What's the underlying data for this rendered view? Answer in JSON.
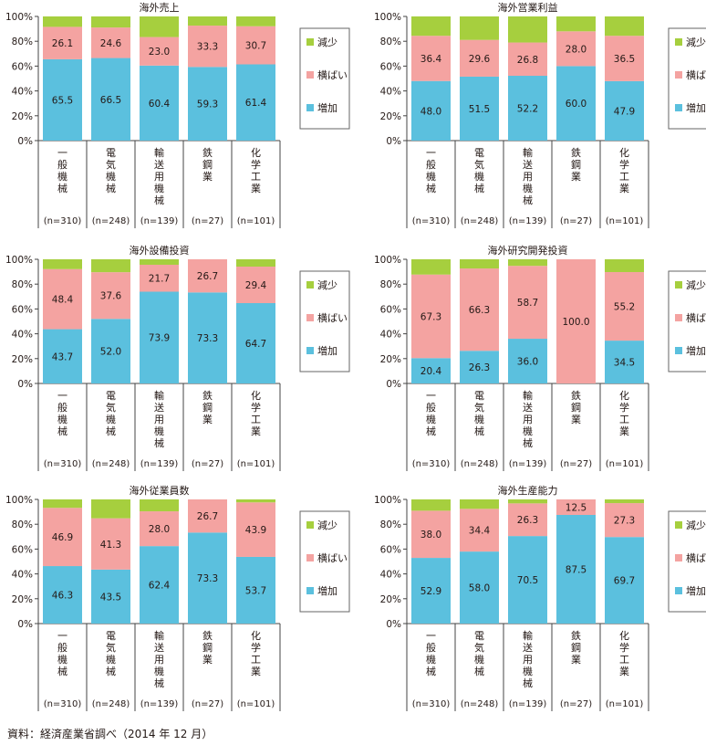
{
  "colors": {
    "increase": "#5bc0de",
    "flat": "#f4a3a1",
    "decrease": "#a6cf3e",
    "text": "#231815"
  },
  "source_note": "資料：経済産業省調べ（2014 年 12 月）",
  "chart_data": [
    {
      "type": "bar",
      "stacked": "percent",
      "title": "海外売上",
      "categories": [
        "一般機械",
        "電気機械",
        "輸送用機械",
        "鉄鋼業",
        "化学工業"
      ],
      "sample_sizes": [
        "(n=310)",
        "(n=248)",
        "(n=139)",
        "(n=27)",
        "(n=101)"
      ],
      "ylim": [
        0,
        100
      ],
      "yticks": [
        "0%",
        "20%",
        "40%",
        "60%",
        "80%",
        "100%"
      ],
      "legend": "right",
      "series": [
        {
          "name": "増加",
          "values": [
            65.5,
            66.5,
            60.4,
            59.3,
            61.4
          ]
        },
        {
          "name": "横ばい",
          "values": [
            26.1,
            24.6,
            23.0,
            33.3,
            30.7
          ]
        },
        {
          "name": "減少",
          "values": [
            8.4,
            8.9,
            16.6,
            7.4,
            7.9
          ]
        }
      ]
    },
    {
      "type": "bar",
      "stacked": "percent",
      "title": "海外営業利益",
      "categories": [
        "一般機械",
        "電気機械",
        "輸送用機械",
        "鉄鋼業",
        "化学工業"
      ],
      "sample_sizes": [
        "(n=310)",
        "(n=248)",
        "(n=139)",
        "(n=27)",
        "(n=101)"
      ],
      "ylim": [
        0,
        100
      ],
      "yticks": [
        "0%",
        "20%",
        "40%",
        "60%",
        "80%",
        "100%"
      ],
      "legend": "right",
      "series": [
        {
          "name": "増加",
          "values": [
            48.0,
            51.5,
            52.2,
            60.0,
            47.9
          ]
        },
        {
          "name": "横ばい",
          "values": [
            36.4,
            29.6,
            26.8,
            28.0,
            36.5
          ]
        },
        {
          "name": "減少",
          "values": [
            15.6,
            18.9,
            21.0,
            12.0,
            15.6
          ]
        }
      ]
    },
    {
      "type": "bar",
      "stacked": "percent",
      "title": "海外設備投資",
      "categories": [
        "一般機械",
        "電気機械",
        "輸送用機械",
        "鉄鋼業",
        "化学工業"
      ],
      "sample_sizes": [
        "(n=310)",
        "(n=248)",
        "(n=139)",
        "(n=27)",
        "(n=101)"
      ],
      "ylim": [
        0,
        100
      ],
      "yticks": [
        "0%",
        "20%",
        "40%",
        "60%",
        "80%",
        "100%"
      ],
      "legend": "right",
      "series": [
        {
          "name": "増加",
          "values": [
            43.7,
            52.0,
            73.9,
            73.3,
            64.7
          ]
        },
        {
          "name": "横ばい",
          "values": [
            48.4,
            37.6,
            21.7,
            26.7,
            29.4
          ]
        },
        {
          "name": "減少",
          "values": [
            7.9,
            10.4,
            4.4,
            0,
            5.9
          ]
        }
      ]
    },
    {
      "type": "bar",
      "stacked": "percent",
      "title": "海外研究開発投資",
      "categories": [
        "一般機械",
        "電気機械",
        "輸送用機械",
        "鉄鋼業",
        "化学工業"
      ],
      "sample_sizes": [
        "(n=310)",
        "(n=248)",
        "(n=139)",
        "(n=27)",
        "(n=101)"
      ],
      "ylim": [
        0,
        100
      ],
      "yticks": [
        "0%",
        "20%",
        "40%",
        "60%",
        "80%",
        "100%"
      ],
      "legend": "right",
      "series": [
        {
          "name": "増加",
          "values": [
            20.4,
            26.3,
            36.0,
            0,
            34.5
          ]
        },
        {
          "name": "横ばい",
          "values": [
            67.3,
            66.3,
            58.7,
            100.0,
            55.2
          ]
        },
        {
          "name": "減少",
          "values": [
            12.3,
            7.4,
            5.3,
            0,
            10.3
          ]
        }
      ]
    },
    {
      "type": "bar",
      "stacked": "percent",
      "title": "海外従業員数",
      "categories": [
        "一般機械",
        "電気機械",
        "輸送用機械",
        "鉄鋼業",
        "化学工業"
      ],
      "sample_sizes": [
        "(n=310)",
        "(n=248)",
        "(n=139)",
        "(n=27)",
        "(n=101)"
      ],
      "ylim": [
        0,
        100
      ],
      "yticks": [
        "0%",
        "20%",
        "40%",
        "60%",
        "80%",
        "100%"
      ],
      "legend": "right",
      "series": [
        {
          "name": "増加",
          "values": [
            46.3,
            43.5,
            62.4,
            73.3,
            53.7
          ]
        },
        {
          "name": "横ばい",
          "values": [
            46.9,
            41.3,
            28.0,
            26.7,
            43.9
          ]
        },
        {
          "name": "減少",
          "values": [
            6.8,
            15.2,
            9.6,
            0,
            2.4
          ]
        }
      ]
    },
    {
      "type": "bar",
      "stacked": "percent",
      "title": "海外生産能力",
      "categories": [
        "一般機械",
        "電気機械",
        "輸送用機械",
        "鉄鋼業",
        "化学工業"
      ],
      "sample_sizes": [
        "(n=310)",
        "(n=248)",
        "(n=139)",
        "(n=27)",
        "(n=101)"
      ],
      "ylim": [
        0,
        100
      ],
      "yticks": [
        "0%",
        "20%",
        "40%",
        "60%",
        "80%",
        "100%"
      ],
      "legend": "right",
      "series": [
        {
          "name": "増加",
          "values": [
            52.9,
            58.0,
            70.5,
            87.5,
            69.7
          ]
        },
        {
          "name": "横ばい",
          "values": [
            38.0,
            34.4,
            26.3,
            12.5,
            27.3
          ]
        },
        {
          "name": "減少",
          "values": [
            9.1,
            7.6,
            3.2,
            0,
            3.0
          ]
        }
      ]
    }
  ]
}
